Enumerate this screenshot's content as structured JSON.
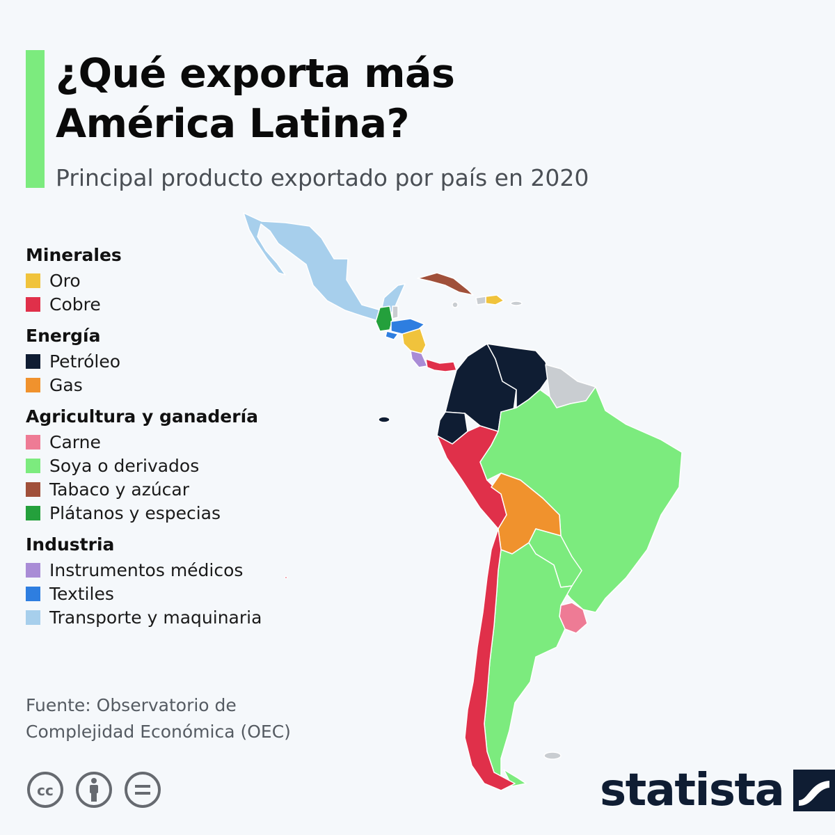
{
  "title": {
    "line1": "¿Qué exporta más",
    "line2": "América Latina?"
  },
  "subtitle": "Principal producto exportado por país en 2020",
  "legend": [
    {
      "heading": "Minerales",
      "items": [
        {
          "label": "Oro",
          "color": "#f0c33c"
        },
        {
          "label": "Cobre",
          "color": "#e0304a"
        }
      ]
    },
    {
      "heading": "Energía",
      "items": [
        {
          "label": "Petróleo",
          "color": "#0f1d33"
        },
        {
          "label": "Gas",
          "color": "#f0922d"
        }
      ]
    },
    {
      "heading": "Agricultura y ganadería",
      "items": [
        {
          "label": "Carne",
          "color": "#ee7b95"
        },
        {
          "label": "Soya o derivados",
          "color": "#7ceb7e"
        },
        {
          "label": "Tabaco y azúcar",
          "color": "#a0503a"
        },
        {
          "label": "Plátanos y especias",
          "color": "#24a03c"
        }
      ]
    },
    {
      "heading": "Industria",
      "items": [
        {
          "label": "Instrumentos médicos",
          "color": "#a98cd6"
        },
        {
          "label": "Textiles",
          "color": "#2e7ee0"
        },
        {
          "label": "Transporte y maquinaria",
          "color": "#a7cfec"
        }
      ]
    }
  ],
  "map_colors": {
    "no_data": "#c9cdd1",
    "accent": "#7ceb7e"
  },
  "source": {
    "line1": "Fuente: Observatorio de",
    "line2": "Complejidad Económica (OEC)"
  },
  "license_icons": [
    "cc-icon",
    "by-attribution-icon",
    "no-derivatives-icon"
  ],
  "brand": {
    "name": "statista",
    "color": "#0f1d33"
  }
}
